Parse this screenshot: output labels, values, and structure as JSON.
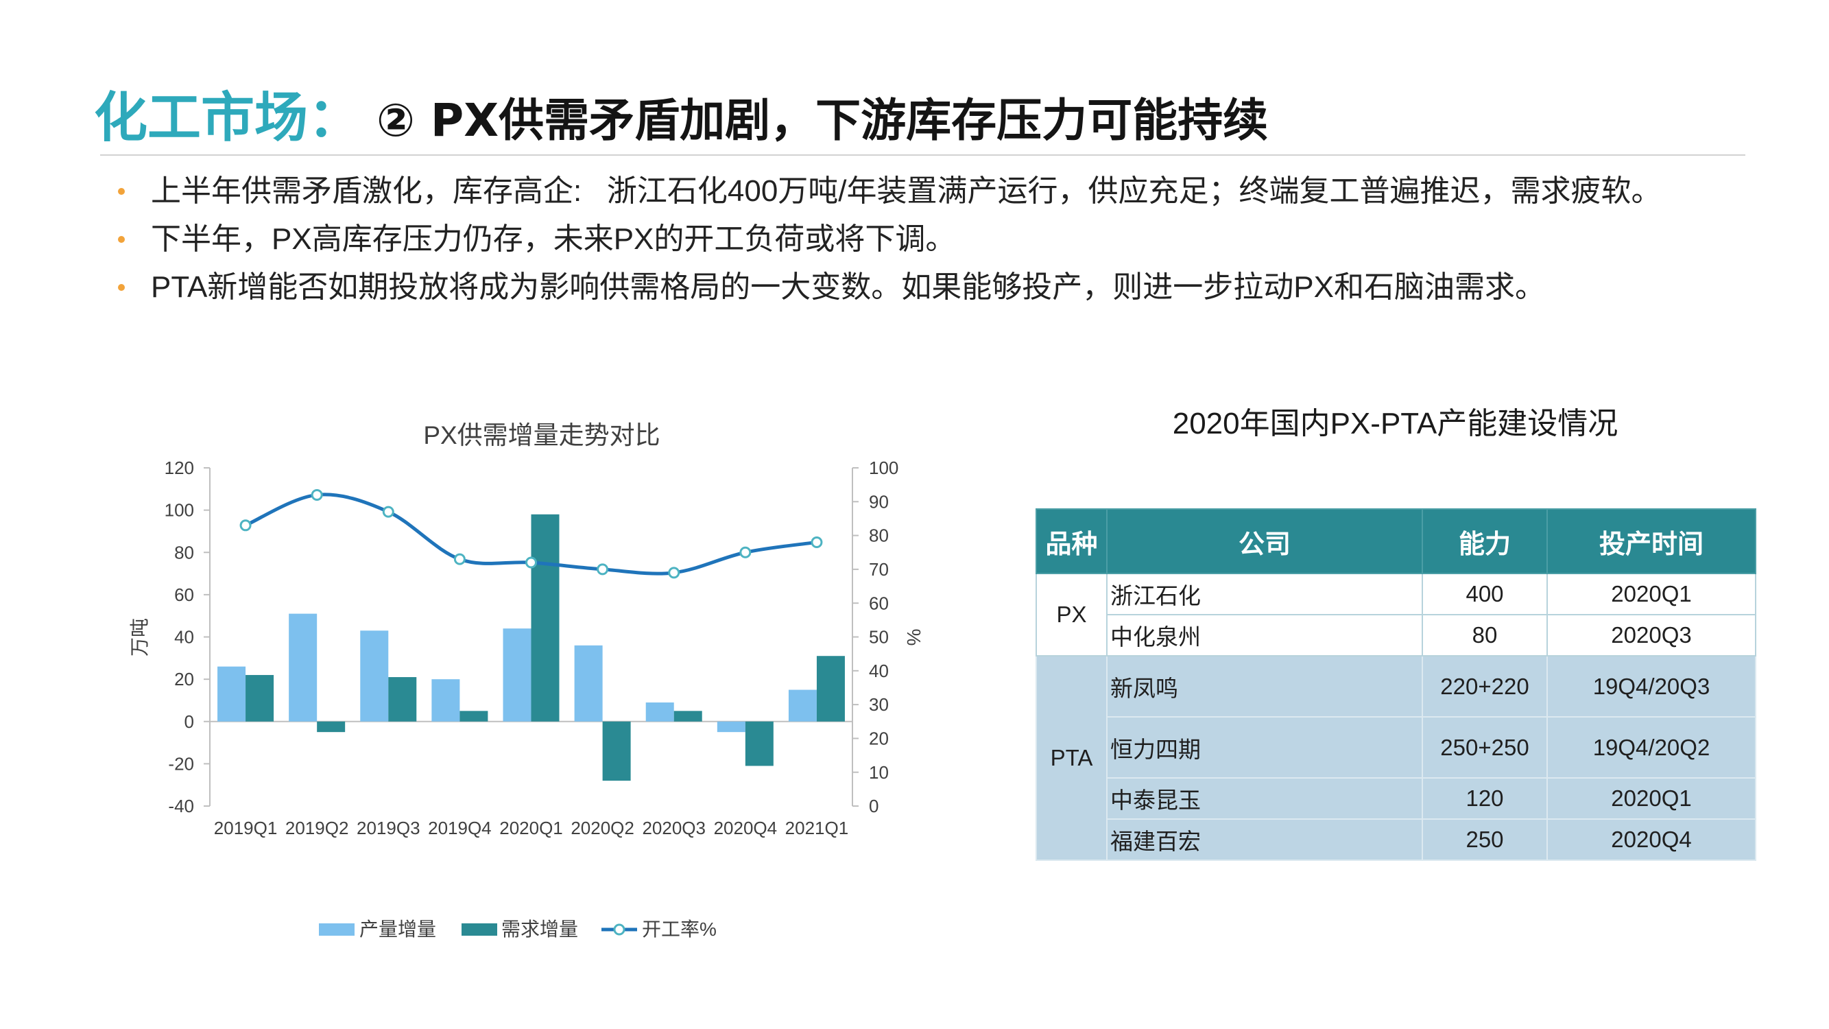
{
  "theme": {
    "title_accent_color": "#2ea9bb",
    "title_color": "#141414",
    "bullet_color": "#f2a33a",
    "text_color": "#222222",
    "table_header_color": "#2a8992",
    "table_pta_row_color": "#bdd5e4"
  },
  "slide": {
    "title_prefix": "化工市场：",
    "title_main": "② PX供需矛盾加剧，下游库存压力可能持续",
    "bullets": [
      "上半年供需矛盾激化，库存高企:   浙江石化400万吨/年装置满产运行，供应充足；终端复工普遍推迟，需求疲软。",
      "下半年，PX高库存压力仍存，未来PX的开工负荷或将下调。",
      "PTA新增能否如期投放将成为影响供需格局的一大变数。如果能够投产，则进一步拉动PX和石脑油需求。"
    ]
  },
  "chart_data": {
    "type": "bar",
    "title": "PX供需增量走势对比",
    "categories": [
      "2019Q1",
      "2019Q2",
      "2019Q3",
      "2019Q4",
      "2020Q1",
      "2020Q2",
      "2020Q3",
      "2020Q4",
      "2021Q1"
    ],
    "series": [
      {
        "name": "产量增量",
        "type": "bar",
        "axis": "left",
        "color": "#7dc0ee",
        "values": [
          26,
          51,
          43,
          20,
          44,
          36,
          9,
          -5,
          15
        ]
      },
      {
        "name": "需求增量",
        "type": "bar",
        "axis": "left",
        "color": "#2a8a93",
        "values": [
          22,
          -5,
          21,
          5,
          98,
          -28,
          5,
          -21,
          31
        ]
      },
      {
        "name": "开工率%",
        "type": "line",
        "axis": "right",
        "color": "#1f74ba",
        "marker_color": "#4db3c2",
        "values": [
          83,
          92,
          87,
          73,
          72,
          70,
          69,
          75,
          78
        ]
      }
    ],
    "xlabel": "",
    "ylabel": "万吨",
    "y2label": "%",
    "ylim": [
      -40,
      120
    ],
    "y2lim": [
      0,
      100
    ],
    "yticks": [
      120,
      100,
      80,
      60,
      40,
      20,
      0,
      -20,
      -40
    ],
    "y2ticks": [
      100,
      90,
      80,
      70,
      60,
      50,
      40,
      30,
      20,
      10,
      0
    ],
    "grid": false,
    "legend": "bottom"
  },
  "table": {
    "title": "2020年国内PX-PTA产能建设情况",
    "headers": [
      "品种",
      "公司",
      "能力",
      "投产时间"
    ],
    "groups": [
      {
        "variety": "PX",
        "rows": [
          {
            "company": "浙江石化",
            "capacity": "400",
            "start": "2020Q1"
          },
          {
            "company": "中化泉州",
            "capacity": "80",
            "start": "2020Q3"
          }
        ]
      },
      {
        "variety": "PTA",
        "rows": [
          {
            "company": "新凤鸣",
            "capacity": "220+220",
            "start": "19Q4/20Q3"
          },
          {
            "company": "恒力四期",
            "capacity": "250+250",
            "start": "19Q4/20Q2"
          },
          {
            "company": "中泰昆玉",
            "capacity": "120",
            "start": "2020Q1"
          },
          {
            "company": "福建百宏",
            "capacity": "250",
            "start": "2020Q4"
          }
        ]
      }
    ]
  }
}
